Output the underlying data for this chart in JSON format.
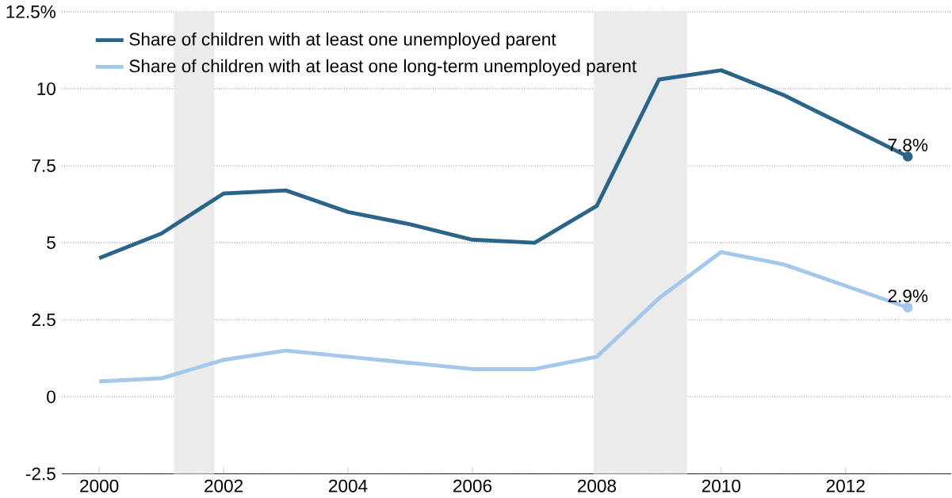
{
  "chart_data": {
    "type": "line",
    "x": [
      2000,
      2001,
      2002,
      2003,
      2004,
      2005,
      2006,
      2007,
      2008,
      2009,
      2010,
      2011,
      2012,
      2013
    ],
    "series": [
      {
        "name": "Share of children with at least one unemployed parent",
        "color": "#2a6589",
        "values": [
          4.5,
          5.3,
          6.6,
          6.7,
          6.0,
          5.6,
          5.1,
          5.0,
          6.2,
          10.3,
          10.6,
          9.8,
          8.8,
          7.8
        ]
      },
      {
        "name": "Share of children with at least one long-term unemployed parent",
        "color": "#a3c8ea",
        "values": [
          0.5,
          0.6,
          1.2,
          1.5,
          1.3,
          1.1,
          0.9,
          0.9,
          1.3,
          3.2,
          4.7,
          4.3,
          3.6,
          2.9
        ]
      }
    ],
    "xlim": [
      1999.4,
      2013.7
    ],
    "ylim": [
      -2.5,
      12.5
    ],
    "xticks": [
      2000,
      2002,
      2004,
      2006,
      2008,
      2010,
      2012
    ],
    "yticks": [
      -2.5,
      0,
      2.5,
      5,
      7.5,
      10,
      {
        "value": 12.5,
        "label": "12.5%"
      }
    ],
    "bands": [
      {
        "axis": "x",
        "from": 2001.2,
        "to": 2001.85,
        "color": "#ebebeb"
      },
      {
        "axis": "x",
        "from": 2007.95,
        "to": 2009.45,
        "color": "#ebebeb"
      }
    ],
    "annotations": [
      {
        "text": "7.8%",
        "x": 2013,
        "y": 7.8
      },
      {
        "text": "2.9%",
        "x": 2013,
        "y": 2.9
      }
    ],
    "grid": "y",
    "legend": "top left",
    "marker": "none",
    "line_style": "solid"
  }
}
